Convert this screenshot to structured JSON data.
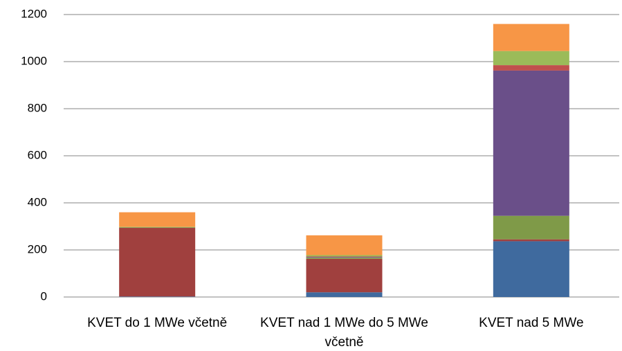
{
  "chart_data": {
    "type": "stacked_bar",
    "categories": [
      "KVET do 1 MWe včetně",
      "KVET nad 1 MWe do 5 MWe včetně",
      "KVET nad 5 MWe"
    ],
    "series": [
      {
        "color": "#3f6a9e",
        "values": [
          2,
          20,
          237
        ]
      },
      {
        "color": "#a0403e",
        "values": [
          292,
          142,
          8
        ]
      },
      {
        "color": "#7f9a48",
        "values": [
          2,
          5,
          100
        ]
      },
      {
        "color": "#6a4f89",
        "values": [
          0,
          3,
          617
        ]
      },
      {
        "color": "#c0504d",
        "values": [
          0,
          2,
          23
        ]
      },
      {
        "color": "#9bbb59",
        "values": [
          2,
          6,
          60
        ]
      },
      {
        "color": "#f79646",
        "values": [
          62,
          84,
          115
        ]
      }
    ],
    "ylim": [
      0,
      1200
    ],
    "yticks": [
      0,
      200,
      400,
      600,
      800,
      1000,
      1200
    ],
    "grid": true
  }
}
